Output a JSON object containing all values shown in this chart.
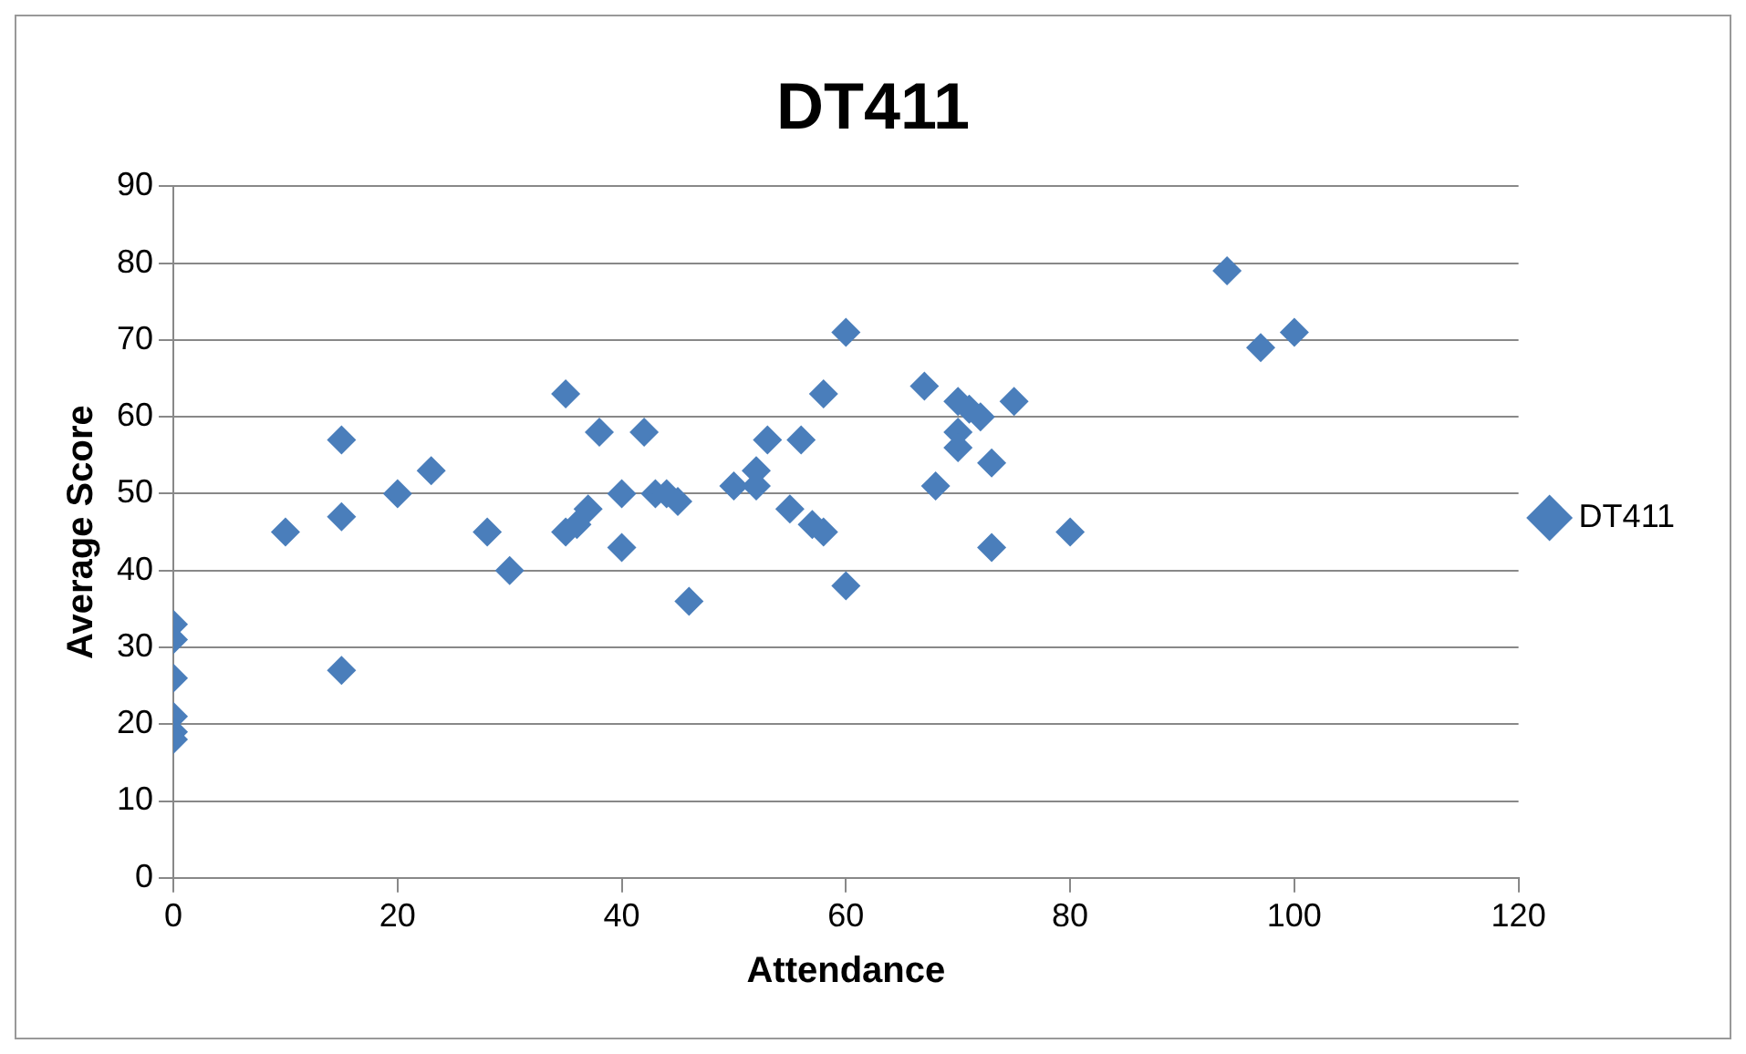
{
  "chart_data": {
    "type": "scatter",
    "title": "DT411",
    "xlabel": "Attendance",
    "ylabel": "Average Score",
    "xlim": [
      0,
      120
    ],
    "xticks": [
      0,
      20,
      40,
      60,
      80,
      100,
      120
    ],
    "ylim": [
      0,
      90
    ],
    "yticks": [
      0,
      10,
      20,
      30,
      40,
      50,
      60,
      70,
      80,
      90
    ],
    "grid": "y",
    "legend": "right",
    "marker": "diamond",
    "series": [
      {
        "name": "DT411",
        "color": "#4a7ebb",
        "x": [
          0,
          0,
          0,
          0,
          0,
          0,
          10,
          15,
          15,
          15,
          20,
          23,
          28,
          30,
          35,
          35,
          36,
          37,
          38,
          40,
          40,
          42,
          43,
          44,
          45,
          46,
          50,
          52,
          52,
          53,
          55,
          56,
          57,
          58,
          58,
          60,
          60,
          67,
          68,
          70,
          70,
          70,
          71,
          72,
          73,
          73,
          75,
          80,
          94,
          97,
          100
        ],
        "values": [
          33,
          31,
          26,
          21,
          19,
          18,
          45,
          57,
          47,
          27,
          50,
          53,
          45,
          40,
          63,
          45,
          46,
          48,
          58,
          50,
          43,
          58,
          50,
          50,
          49,
          36,
          51,
          53,
          51,
          57,
          48,
          57,
          46,
          45,
          63,
          71,
          38,
          64,
          51,
          62,
          58,
          56,
          61,
          60,
          54,
          43,
          62,
          45,
          79,
          69,
          71
        ]
      }
    ]
  }
}
